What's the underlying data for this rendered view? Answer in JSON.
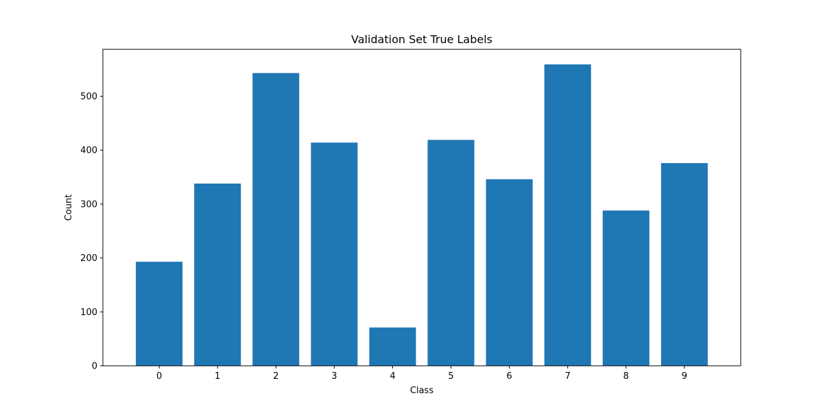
{
  "chart_data": {
    "type": "bar",
    "title": "Validation Set True Labels",
    "xlabel": "Class",
    "ylabel": "Count",
    "categories": [
      "0",
      "1",
      "2",
      "3",
      "4",
      "5",
      "6",
      "7",
      "8",
      "9"
    ],
    "values": [
      193,
      338,
      543,
      414,
      71,
      419,
      346,
      559,
      288,
      376
    ],
    "ylim": [
      0,
      587
    ],
    "yticks": [
      0,
      100,
      200,
      300,
      400,
      500
    ],
    "bar_color": "#1f77b4",
    "grid": false
  }
}
